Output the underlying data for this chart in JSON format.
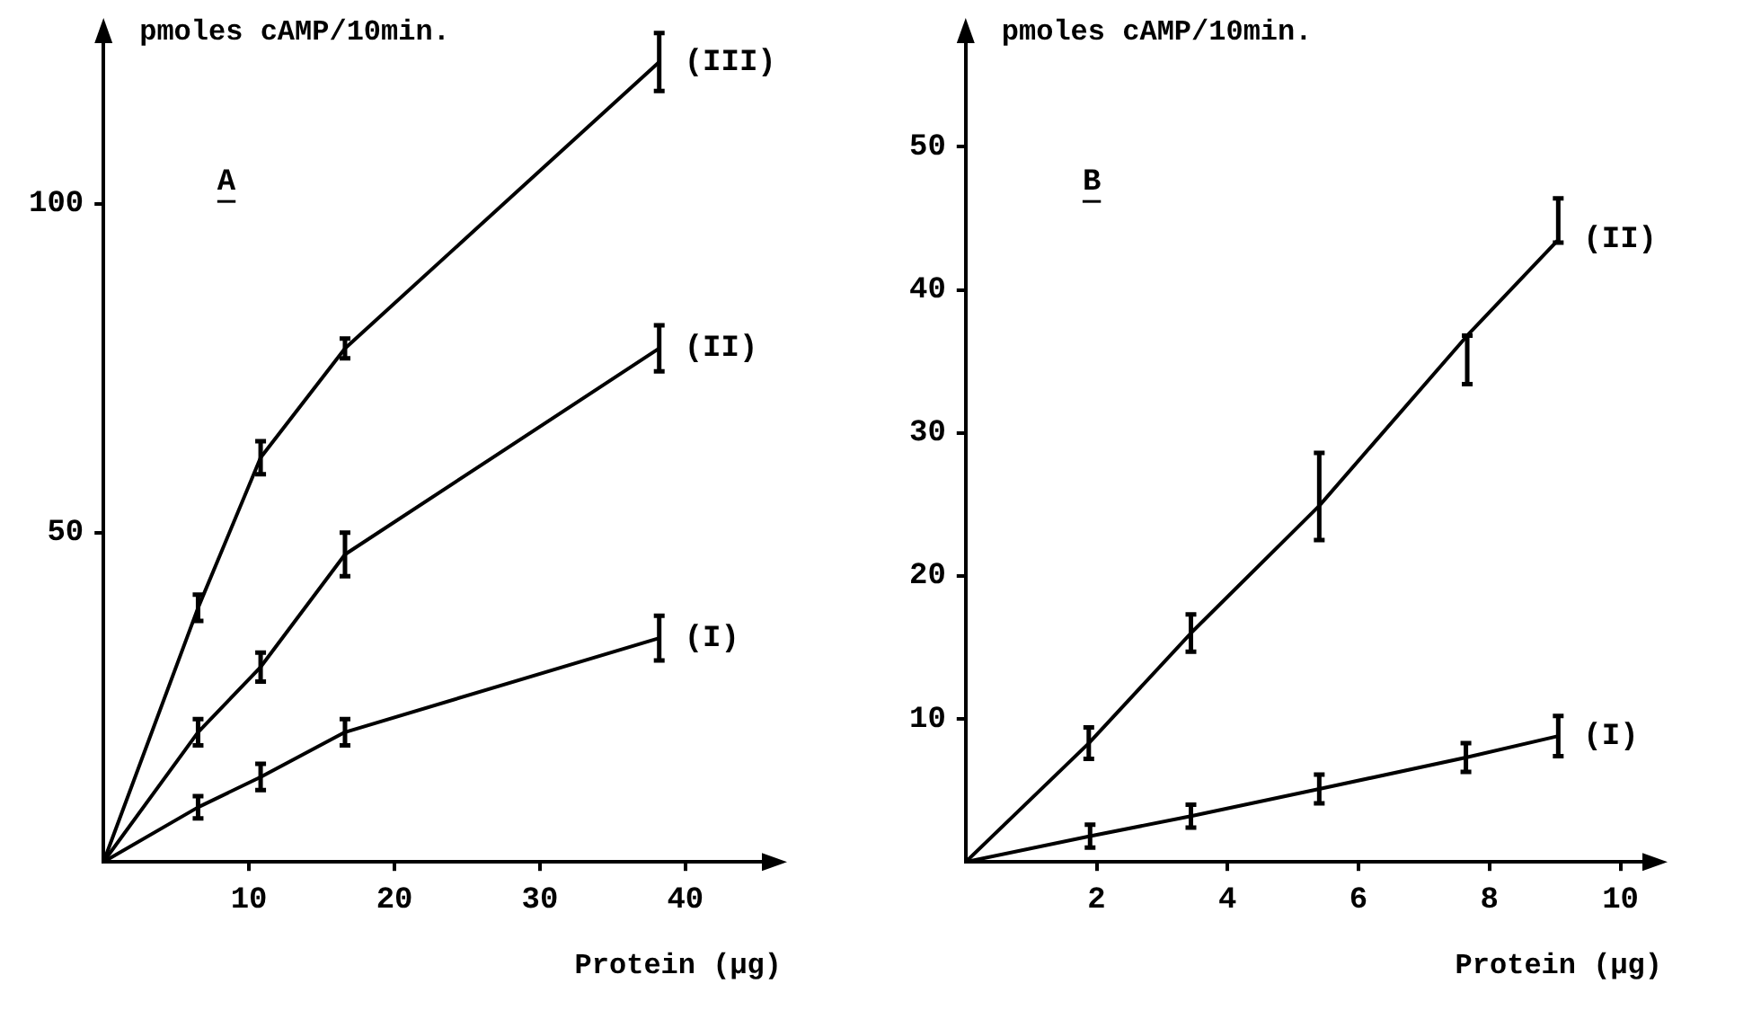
{
  "chart_data": [
    {
      "type": "line",
      "title": "A",
      "ylabel": "pmoles cAMP/10min.",
      "xlabel": "Protein (µg)",
      "xlim": [
        0,
        46
      ],
      "ylim": [
        0,
        126
      ],
      "xticks": [
        10,
        20,
        30,
        40
      ],
      "yticks": [
        50,
        100
      ],
      "grid": false,
      "legend": false,
      "marker": "none",
      "line_style": "solid",
      "series": [
        {
          "name": "(I)",
          "color": "#000000",
          "x": [
            0,
            6.5,
            10.8,
            16.6,
            38.2
          ],
          "values": [
            0,
            8.3,
            12.9,
            19.7,
            34
          ],
          "errors": [
            null,
            1.7,
            2,
            2,
            3.4
          ]
        },
        {
          "name": "(II)",
          "color": "#000000",
          "x": [
            0,
            6.5,
            10.8,
            16.6,
            38.2
          ],
          "values": [
            0,
            19.7,
            29.6,
            46.7,
            78
          ],
          "errors": [
            null,
            2,
            2.2,
            3.3,
            3.5
          ]
        },
        {
          "name": "(III)",
          "color": "#000000",
          "x": [
            0,
            6.5,
            10.8,
            16.6,
            38.2
          ],
          "values": [
            0,
            38.6,
            61.4,
            78,
            121.5
          ],
          "errors": [
            null,
            2,
            2.5,
            1.5,
            4.4
          ]
        }
      ]
    },
    {
      "type": "line",
      "title": "B",
      "ylabel": "pmoles cAMP/10min.",
      "xlabel": "Protein (µg)",
      "xlim": [
        0,
        10.5
      ],
      "ylim": [
        0,
        58
      ],
      "xticks": [
        2,
        4,
        6,
        8,
        10
      ],
      "yticks": [
        10,
        20,
        30,
        40,
        50
      ],
      "grid": false,
      "legend": false,
      "marker": "none",
      "line_style": "solid",
      "series": [
        {
          "name": "(I)",
          "color": "#000000",
          "x": [
            0,
            1.9,
            3.44,
            5.4,
            7.64,
            9.05
          ],
          "values": [
            0,
            1.8,
            3.2,
            5.1,
            7.3,
            8.8
          ],
          "errors": [
            null,
            0.8,
            0.8,
            1,
            1,
            1.4
          ]
        },
        {
          "name": "(II)",
          "color": "#000000",
          "x": [
            0,
            1.88,
            3.44,
            5.4,
            7.66,
            9.05
          ],
          "values": [
            0,
            8.3,
            16,
            24.9,
            36.8,
            43.5
          ],
          "errors": [
            null,
            1.1,
            1.3,
            [
              22.5,
              28.6
            ],
            [
              33.4,
              36.8
            ],
            [
              43.3,
              46.4
            ]
          ]
        }
      ]
    }
  ]
}
